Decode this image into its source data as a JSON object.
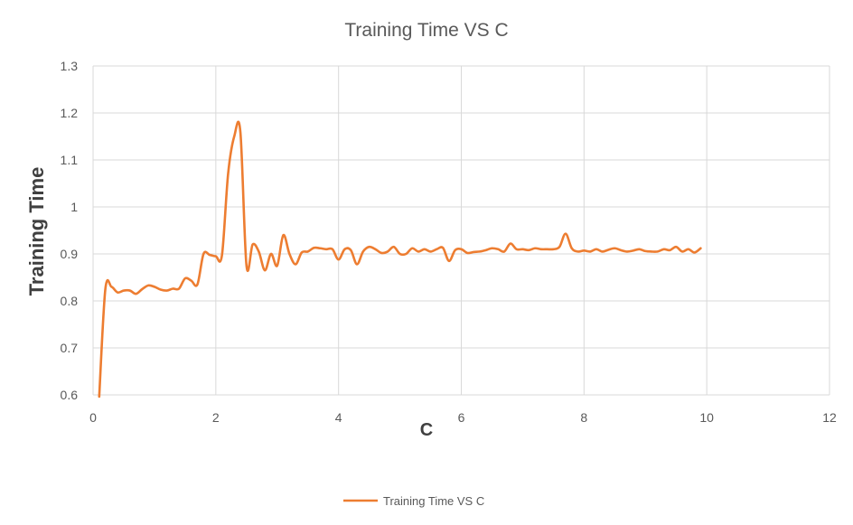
{
  "chart_data": {
    "type": "line",
    "title": "Training Time VS C",
    "xlabel": "C",
    "ylabel": "Training Time",
    "xlim": [
      0,
      12
    ],
    "ylim": [
      0.6,
      1.3
    ],
    "x_ticks": [
      "0",
      "2",
      "4",
      "6",
      "8",
      "10",
      "12"
    ],
    "y_ticks": [
      "0.6",
      "0.7",
      "0.8",
      "0.9",
      "1",
      "1.1",
      "1.2",
      "1.3"
    ],
    "grid": true,
    "legend_position": "bottom",
    "color": "#ED7D31",
    "series": [
      {
        "name": "Training Time VS C",
        "x": [
          0.1,
          0.2,
          0.3,
          0.4,
          0.5,
          0.6,
          0.7,
          0.8,
          0.9,
          1.0,
          1.1,
          1.2,
          1.3,
          1.4,
          1.5,
          1.6,
          1.7,
          1.8,
          1.9,
          2.0,
          2.1,
          2.2,
          2.3,
          2.4,
          2.5,
          2.6,
          2.7,
          2.8,
          2.9,
          3.0,
          3.1,
          3.2,
          3.3,
          3.4,
          3.5,
          3.6,
          3.7,
          3.8,
          3.9,
          4.0,
          4.1,
          4.2,
          4.3,
          4.4,
          4.5,
          4.6,
          4.7,
          4.8,
          4.9,
          5.0,
          5.1,
          5.2,
          5.3,
          5.4,
          5.5,
          5.6,
          5.7,
          5.8,
          5.9,
          6.0,
          6.1,
          6.2,
          6.3,
          6.4,
          6.5,
          6.6,
          6.7,
          6.8,
          6.9,
          7.0,
          7.1,
          7.2,
          7.3,
          7.4,
          7.5,
          7.6,
          7.7,
          7.8,
          7.9,
          8.0,
          8.1,
          8.2,
          8.3,
          8.4,
          8.5,
          8.6,
          8.7,
          8.8,
          8.9,
          9.0,
          9.1,
          9.2,
          9.3,
          9.4,
          9.5,
          9.6,
          9.7,
          9.8,
          9.9
        ],
        "values": [
          0.59,
          0.825,
          0.83,
          0.818,
          0.822,
          0.822,
          0.815,
          0.825,
          0.833,
          0.83,
          0.824,
          0.822,
          0.826,
          0.826,
          0.848,
          0.843,
          0.835,
          0.9,
          0.898,
          0.895,
          0.897,
          1.07,
          1.15,
          1.16,
          0.875,
          0.92,
          0.905,
          0.865,
          0.9,
          0.875,
          0.94,
          0.9,
          0.878,
          0.903,
          0.905,
          0.913,
          0.912,
          0.91,
          0.91,
          0.888,
          0.91,
          0.908,
          0.878,
          0.905,
          0.915,
          0.91,
          0.902,
          0.905,
          0.915,
          0.9,
          0.9,
          0.912,
          0.905,
          0.91,
          0.905,
          0.91,
          0.913,
          0.885,
          0.908,
          0.91,
          0.902,
          0.904,
          0.905,
          0.908,
          0.912,
          0.91,
          0.905,
          0.922,
          0.91,
          0.91,
          0.908,
          0.912,
          0.91,
          0.91,
          0.91,
          0.915,
          0.943,
          0.912,
          0.905,
          0.907,
          0.905,
          0.91,
          0.905,
          0.909,
          0.912,
          0.908,
          0.905,
          0.907,
          0.91,
          0.906,
          0.905,
          0.905,
          0.91,
          0.908,
          0.915,
          0.905,
          0.91,
          0.903,
          0.912
        ]
      }
    ]
  }
}
